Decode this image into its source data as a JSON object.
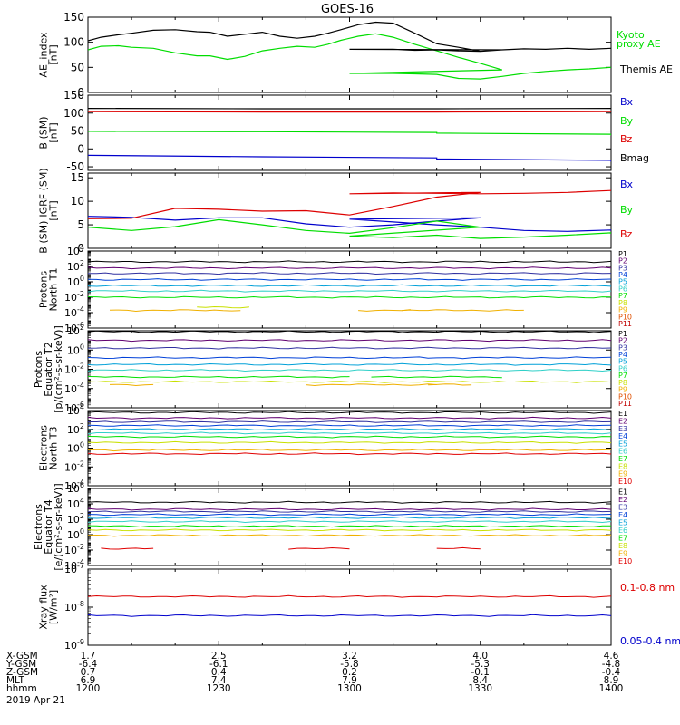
{
  "title": "GOES-16",
  "chart_data": [
    {
      "type": "line",
      "ylabel": [
        "AE_index",
        "[nT]"
      ],
      "ylim": [
        0,
        150
      ],
      "ytick_labels": [
        "0",
        "50",
        "100",
        "150"
      ],
      "xlim": [
        1200,
        1400
      ],
      "legend_placement": "right",
      "series": [
        {
          "name": "Kyoto proxy AE",
          "legend_lines": [
            "Kyoto",
            "proxy AE"
          ],
          "color": "#00dd00",
          "x": [
            1200,
            1203,
            1207,
            1210,
            1215,
            1220,
            1225,
            1228,
            1232,
            1236,
            1240,
            1244,
            1248,
            1252,
            1255,
            1258,
            1262,
            1266,
            1270,
            1275,
            1280,
            1285,
            1290,
            1295,
            1300,
            1305,
            1310,
            1315,
            1320,
            1325,
            1330,
            1335,
            1340,
            1345,
            1350,
            1355,
            1360,
            1365,
            1370,
            1375,
            1380,
            1385,
            1390,
            1395,
            1400
          ],
          "y": [
            85,
            92,
            93,
            90,
            88,
            79,
            73,
            73,
            66,
            72,
            83,
            88,
            92,
            90,
            96,
            104,
            112,
            117,
            110,
            96,
            83,
            70,
            58,
            45,
            38,
            38,
            38,
            37,
            36,
            28,
            27,
            32,
            38,
            42,
            45,
            47,
            50,
            55,
            56,
            53,
            51,
            46,
            44,
            46,
            45
          ]
        },
        {
          "name": "Themis AE",
          "legend_lines": [
            "Themis AE"
          ],
          "color": "#000000",
          "x": [
            1200,
            1203,
            1207,
            1210,
            1215,
            1220,
            1225,
            1228,
            1232,
            1236,
            1240,
            1244,
            1248,
            1252,
            1255,
            1258,
            1262,
            1266,
            1270,
            1275,
            1280,
            1285,
            1290,
            1295,
            1300,
            1305,
            1310,
            1315,
            1320,
            1325,
            1330,
            1335,
            1340,
            1345,
            1350,
            1355,
            1360,
            1365,
            1370,
            1375,
            1380,
            1385,
            1390,
            1395,
            1400
          ],
          "y": [
            103,
            110,
            115,
            118,
            124,
            125,
            121,
            120,
            112,
            116,
            120,
            112,
            108,
            112,
            118,
            125,
            135,
            140,
            138,
            118,
            97,
            90,
            82,
            85,
            86,
            86,
            86,
            84,
            85,
            83,
            82,
            85,
            87,
            86,
            88,
            86,
            88,
            88,
            90,
            86,
            85,
            82,
            80,
            82,
            78
          ]
        }
      ]
    },
    {
      "type": "line",
      "ylabel": [
        "B (SM)",
        "[nT]"
      ],
      "ylim": [
        -60,
        150
      ],
      "ytick_labels": [
        "-50",
        "0",
        "50",
        "100",
        "150"
      ],
      "xlim": [
        1200,
        1400
      ],
      "legend_placement": "right",
      "series": [
        {
          "name": "Bx",
          "color": "#0000cc",
          "x": [
            1200,
            1240,
            1280,
            1320,
            1360,
            1400
          ],
          "y": [
            -18,
            -22,
            -25,
            -28,
            -32,
            -36
          ]
        },
        {
          "name": "By",
          "color": "#00dd00",
          "x": [
            1200,
            1240,
            1280,
            1320,
            1360,
            1400
          ],
          "y": [
            49,
            48,
            46,
            44,
            41,
            38
          ]
        },
        {
          "name": "Bz",
          "color": "#dd0000",
          "x": [
            1200,
            1240,
            1280,
            1320,
            1360,
            1400
          ],
          "y": [
            104,
            103,
            103,
            103,
            104,
            106
          ]
        },
        {
          "name": "Bmag",
          "color": "#000000",
          "x": [
            1200,
            1240,
            1280,
            1320,
            1360,
            1400
          ],
          "y": [
            113,
            112,
            112,
            112,
            113,
            114
          ]
        }
      ]
    },
    {
      "type": "line",
      "ylabel": [
        "B (SM)-IGRF (SM)",
        "[nT]"
      ],
      "ylim": [
        0,
        16
      ],
      "ytick_labels": [
        "0",
        "5",
        "10",
        "15"
      ],
      "xlim": [
        1200,
        1400
      ],
      "legend_placement": "right",
      "series": [
        {
          "name": "Bx",
          "color": "#0000cc",
          "x": [
            1200,
            1210,
            1220,
            1230,
            1240,
            1250,
            1260,
            1270,
            1280,
            1290,
            1300,
            1310,
            1320,
            1330,
            1340,
            1350,
            1360,
            1370,
            1380,
            1390,
            1400
          ],
          "y": [
            6.8,
            6.6,
            6.0,
            6.5,
            6.5,
            5.2,
            4.5,
            5.0,
            5.8,
            6.5,
            6.2,
            5.6,
            5.0,
            4.5,
            3.8,
            3.6,
            3.9,
            3.6,
            3.3,
            3.6,
            4.0
          ]
        },
        {
          "name": "By",
          "color": "#00dd00",
          "x": [
            1200,
            1210,
            1220,
            1230,
            1240,
            1250,
            1260,
            1270,
            1280,
            1290,
            1300,
            1310,
            1320,
            1330,
            1340,
            1350,
            1360,
            1370,
            1380,
            1390,
            1400
          ],
          "y": [
            4.5,
            3.8,
            4.6,
            6.1,
            5.0,
            3.8,
            3.2,
            4.4,
            5.8,
            4.5,
            2.6,
            2.3,
            2.8,
            2.1,
            2.4,
            2.8,
            3.3,
            3.0,
            2.8,
            2.4,
            2.4
          ]
        },
        {
          "name": "Bz",
          "color": "#dd0000",
          "x": [
            1200,
            1210,
            1220,
            1230,
            1240,
            1250,
            1260,
            1270,
            1280,
            1290,
            1300,
            1310,
            1320,
            1330,
            1340,
            1350,
            1360,
            1370,
            1380,
            1390,
            1400
          ],
          "y": [
            6.3,
            6.4,
            8.5,
            8.3,
            7.9,
            8.0,
            7.1,
            8.9,
            10.9,
            11.9,
            11.6,
            11.8,
            11.7,
            11.6,
            11.7,
            11.9,
            12.3,
            12.6,
            13.5,
            14.1,
            14.0
          ]
        }
      ]
    },
    {
      "type": "line",
      "ylabel": [
        "Protons",
        "North T1"
      ],
      "log_scale": true,
      "ylim": [
        -6,
        4
      ],
      "ytick_exponents": [
        4,
        2,
        0,
        -2,
        -4,
        -6
      ],
      "xlim": [
        1200,
        1400
      ],
      "legend_placement": "right",
      "series": [
        {
          "name": "P1",
          "color": "#000000",
          "level": 2.6
        },
        {
          "name": "P2",
          "color": "#600070",
          "level": 1.8
        },
        {
          "name": "P3",
          "color": "#3030a0",
          "level": 1.1
        },
        {
          "name": "P4",
          "color": "#0040d8",
          "level": 0.3
        },
        {
          "name": "P5",
          "color": "#00a0d8",
          "level": -0.5
        },
        {
          "name": "P6",
          "color": "#30d0c8",
          "level": -1.2
        },
        {
          "name": "P7",
          "color": "#00e000",
          "level": -2.0
        },
        {
          "name": "P8",
          "color": "#c8e000",
          "level": -3.3,
          "segments": [
            [
              1225,
              1238
            ],
            [
              1278,
              1300
            ]
          ]
        },
        {
          "name": "P9",
          "color": "#f0b000",
          "level": -3.7,
          "segments": [
            [
              1205,
              1235
            ],
            [
              1262,
              1275
            ],
            [
              1312,
              1340
            ],
            [
              1380,
              1400
            ]
          ]
        },
        {
          "name": "P10",
          "color": "#e05000"
        },
        {
          "name": "P11",
          "color": "#c00000"
        }
      ]
    },
    {
      "type": "line",
      "ylabel": [
        "Protons",
        "Equator T2",
        "[p/(cm²-s-sr-keV)]"
      ],
      "log_scale": true,
      "ylim": [
        -6,
        2
      ],
      "ytick_exponents": [
        2,
        0,
        -2,
        -4,
        -6
      ],
      "xlim": [
        1200,
        1400
      ],
      "legend_placement": "right",
      "series": [
        {
          "name": "P1",
          "color": "#000000",
          "level": 1.9
        },
        {
          "name": "P2",
          "color": "#600070",
          "level": 1.0
        },
        {
          "name": "P3",
          "color": "#3030a0",
          "level": 0.2
        },
        {
          "name": "P4",
          "color": "#0040d8",
          "level": -0.8
        },
        {
          "name": "P5",
          "color": "#00a0d8",
          "level": -1.5
        },
        {
          "name": "P6",
          "color": "#30d0c8",
          "level": -2.1
        },
        {
          "name": "P7",
          "color": "#00e000",
          "level": -2.8,
          "segments": [
            [
              1200,
              1300
            ],
            [
              1305,
              1335
            ]
          ]
        },
        {
          "name": "P8",
          "color": "#c8e000",
          "level": -3.3
        },
        {
          "name": "P9",
          "color": "#f0b000",
          "level": -3.6,
          "segments": [
            [
              1205,
              1215
            ],
            [
              1250,
              1280
            ],
            [
              1296,
              1304
            ],
            [
              1318,
              1328
            ]
          ]
        },
        {
          "name": "P10",
          "color": "#e05000"
        },
        {
          "name": "P11",
          "color": "#c00000"
        }
      ]
    },
    {
      "type": "line",
      "ylabel": [
        "Electrons",
        "North T3"
      ],
      "log_scale": true,
      "ylim": [
        -4,
        4
      ],
      "ytick_exponents": [
        4,
        2,
        0,
        -2,
        -4
      ],
      "xlim": [
        1200,
        1400
      ],
      "legend_placement": "right",
      "series": [
        {
          "name": "E1",
          "color": "#000000",
          "level": 3.8
        },
        {
          "name": "E2",
          "color": "#600070",
          "level": 3.2
        },
        {
          "name": "E3",
          "color": "#3030a0",
          "level": 2.8
        },
        {
          "name": "E4",
          "color": "#0040d8",
          "level": 2.4
        },
        {
          "name": "E5",
          "color": "#00a0d8",
          "level": 2.0
        },
        {
          "name": "E6",
          "color": "#30d0c8",
          "level": 1.6
        },
        {
          "name": "E7",
          "color": "#00e000",
          "level": 1.2
        },
        {
          "name": "E8",
          "color": "#c8e000",
          "level": 0.6
        },
        {
          "name": "E9",
          "color": "#f0b000",
          "level": -0.2
        },
        {
          "name": "E10",
          "color": "#e00000",
          "level": -0.6
        }
      ]
    },
    {
      "type": "line",
      "ylabel": [
        "Electrons",
        "Equator T4",
        "[e/(cm²-s-sr-keV)]"
      ],
      "log_scale": true,
      "ylim": [
        -4,
        6
      ],
      "ytick_exponents": [
        6,
        4,
        2,
        0,
        -2,
        -4
      ],
      "xlim": [
        1200,
        1400
      ],
      "legend_placement": "right",
      "series": [
        {
          "name": "E1",
          "color": "#000000",
          "level": 4.2
        },
        {
          "name": "E2",
          "color": "#600070",
          "level": 3.3
        },
        {
          "name": "E3",
          "color": "#3030a0",
          "level": 3.0
        },
        {
          "name": "E4",
          "color": "#0040d8",
          "level": 2.6
        },
        {
          "name": "E5",
          "color": "#00a0d8",
          "level": 2.2
        },
        {
          "name": "E6",
          "color": "#30d0c8",
          "level": 1.7
        },
        {
          "name": "E7",
          "color": "#00e000",
          "level": 1.1
        },
        {
          "name": "E8",
          "color": "#c8e000",
          "level": 0.6
        },
        {
          "name": "E9",
          "color": "#f0b000",
          "level": -0.1
        },
        {
          "name": "E10",
          "color": "#e00000",
          "level": -1.8,
          "segments": [
            [
              1203,
              1216
            ],
            [
              1246,
              1260
            ],
            [
              1320,
              1330
            ]
          ]
        }
      ]
    },
    {
      "type": "line",
      "ylabel": [
        "Xray flux",
        "[W/m²]"
      ],
      "log_scale": true,
      "ylim": [
        -9,
        -7
      ],
      "ytick_exponents": [
        -7,
        -8,
        -9
      ],
      "xlim": [
        1200,
        1400
      ],
      "legend_placement": "right",
      "series": [
        {
          "name": "0.1-0.8 nm",
          "color": "#dd0000",
          "level": -7.72
        },
        {
          "name": "0.05-0.4 nm",
          "color": "#0000cc",
          "level": -8.22
        }
      ]
    }
  ],
  "x_axis": {
    "rows": [
      {
        "label": "X-GSM",
        "values": [
          "1.7",
          "2.5",
          "3.2",
          "4.0",
          "4.6"
        ]
      },
      {
        "label": "Y-GSM",
        "values": [
          "-6.4",
          "-6.1",
          "-5.8",
          "-5.3",
          "-4.8"
        ]
      },
      {
        "label": "Z-GSM",
        "values": [
          "0.7",
          "0.4",
          "0.2",
          "-0.1",
          "-0.4"
        ]
      },
      {
        "label": "MLT",
        "values": [
          "6.9",
          "7.4",
          "7.9",
          "8.4",
          "8.9"
        ]
      },
      {
        "label": "hhmm",
        "values": [
          "1200",
          "1230",
          "1300",
          "1330",
          "1400"
        ]
      }
    ],
    "date": "2019 Apr 21"
  }
}
